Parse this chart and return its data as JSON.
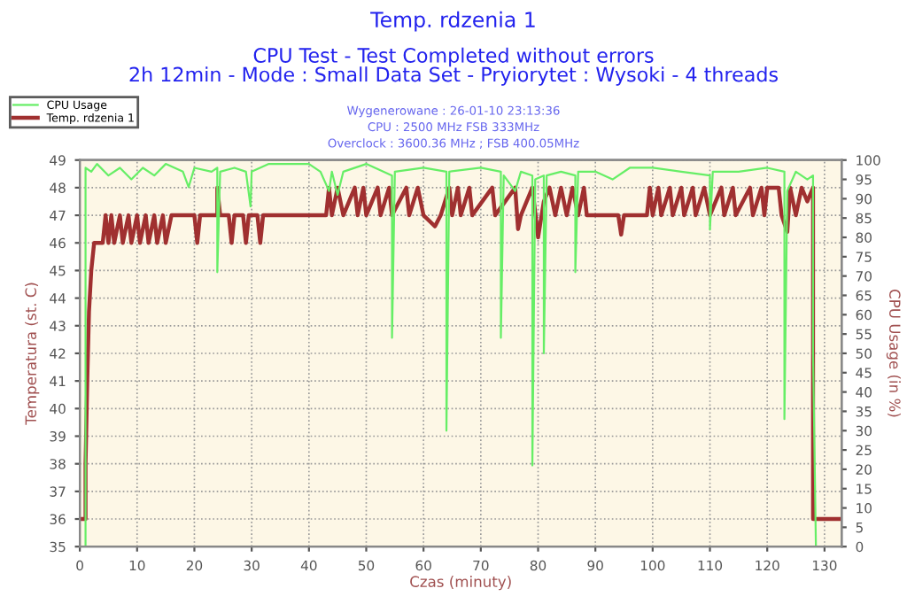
{
  "chart_data": {
    "type": "line",
    "title": "Temp. rdzenia 1",
    "subtitle": "CPU Test - Test Completed without errors\n2h 12min - Mode : Small Data Set - Pryiorytet : Wysoki - 4 threads",
    "annotations": [
      "Wygenerowane : 26-01-10 23:13:36",
      "CPU : 2500 MHz FSB 333MHz",
      "Overclock : 3600.36 MHz ; FSB 400.05MHz"
    ],
    "xlabel": "Czas (minuty)",
    "ylabel": "Temperatura (st. C)",
    "y2label": "CPU Usage (in %)",
    "xlim": [
      0,
      133
    ],
    "xticks": [
      0,
      10,
      20,
      30,
      40,
      50,
      60,
      70,
      80,
      90,
      100,
      110,
      120,
      130
    ],
    "ylim": [
      35,
      49
    ],
    "yticks": [
      35,
      36,
      37,
      38,
      39,
      40,
      41,
      42,
      43,
      44,
      45,
      46,
      47,
      48,
      49
    ],
    "y2lim": [
      0,
      100
    ],
    "y2ticks": [
      0,
      5,
      10,
      15,
      20,
      25,
      30,
      35,
      40,
      45,
      50,
      55,
      60,
      65,
      70,
      75,
      80,
      85,
      90,
      95,
      100
    ],
    "grid": true,
    "legend": "top left",
    "line_style": "solid",
    "marker": "none",
    "series": [
      {
        "name": "CPU Usage",
        "color": "#66ee66",
        "axis": "y2",
        "x": [
          0,
          1,
          1,
          2,
          3,
          5,
          7,
          9,
          11,
          13,
          15,
          18,
          19,
          20,
          23,
          24,
          24,
          24.5,
          27,
          29,
          29.8,
          30,
          33,
          37,
          40,
          42,
          43.5,
          44,
          45,
          46,
          50,
          54.5,
          54.5,
          55,
          60,
          64,
          64,
          64.5,
          70,
          73.5,
          73.5,
          74,
          76,
          77,
          79,
          79,
          79.5,
          81,
          81,
          81.5,
          84,
          86.5,
          86.5,
          87,
          90,
          93,
          96,
          100,
          105,
          110,
          110,
          110.5,
          115,
          120,
          123,
          123,
          123.5,
          125,
          127,
          128,
          128,
          128.5,
          133
        ],
        "values": [
          0,
          0,
          98,
          97,
          99,
          96,
          98,
          95,
          98,
          96,
          99,
          97,
          93,
          98,
          97,
          98,
          71,
          97,
          98,
          97,
          88,
          97,
          99,
          99,
          99,
          97,
          92,
          97,
          91,
          97,
          99,
          96,
          54,
          97,
          98,
          97,
          30,
          97,
          98,
          97,
          54,
          96,
          92,
          97,
          96,
          21,
          95,
          96,
          50,
          96,
          97,
          96,
          71,
          97,
          97,
          95,
          98,
          98,
          97,
          96,
          82,
          97,
          97,
          98,
          97,
          33,
          92,
          97,
          95,
          96,
          50,
          0,
          0
        ]
      },
      {
        "name": "Temp. rdzenia 1",
        "color": "#a03030",
        "x": [
          0,
          1,
          1,
          1.3,
          1.6,
          2,
          2.5,
          4,
          4.5,
          5,
          5.5,
          6,
          7,
          7.5,
          8.5,
          9,
          10,
          10.5,
          11.5,
          12,
          13,
          13.5,
          14.5,
          15,
          16,
          20,
          20.5,
          21,
          24,
          24,
          24.5,
          26,
          26.5,
          27,
          28.5,
          29,
          29.5,
          31,
          31.5,
          32,
          43,
          43.5,
          44,
          45,
          46,
          48,
          48.5,
          49.5,
          50,
          52,
          52.5,
          54,
          54.5,
          57,
          57.5,
          59,
          60,
          62,
          63,
          64.5,
          65,
          66,
          66.5,
          68,
          68.5,
          72,
          72.5,
          76,
          76.5,
          77,
          79,
          80,
          81,
          82,
          83,
          84,
          85,
          86,
          87,
          88,
          88.5,
          94,
          94.5,
          95,
          99,
          99.5,
          100,
          101,
          101.5,
          103,
          103.5,
          105,
          105.5,
          107,
          107.5,
          109,
          110,
          112,
          112.5,
          114,
          114.5,
          117,
          117.5,
          119,
          119.5,
          120,
          122,
          122.5,
          123.5,
          124,
          125,
          126,
          127,
          128,
          128,
          133
        ],
        "values": [
          36,
          36,
          38,
          41,
          43.5,
          45,
          46,
          46,
          47,
          46,
          47,
          46,
          47,
          46,
          47,
          46,
          47,
          46,
          47,
          46,
          47,
          46,
          47,
          46,
          47,
          47,
          46,
          47,
          47,
          48,
          47,
          47,
          46,
          47,
          47,
          46,
          47,
          47,
          46,
          47,
          47,
          48,
          47,
          48,
          47,
          48,
          47,
          48,
          47,
          48,
          47,
          48,
          47,
          48,
          47,
          48,
          47,
          46.6,
          47,
          48,
          47,
          48,
          47,
          48,
          47,
          48,
          47,
          48,
          46.5,
          47,
          48,
          46.2,
          47.5,
          48,
          47,
          48,
          47,
          48,
          47,
          48,
          47,
          47,
          46.3,
          47,
          47,
          48,
          47,
          48,
          47,
          48,
          47,
          48,
          47,
          48,
          47,
          48,
          47,
          48,
          47,
          48,
          47,
          48,
          47,
          48,
          47,
          48,
          48,
          47,
          46.4,
          48,
          47,
          48,
          47.5,
          48,
          36,
          36
        ]
      }
    ]
  }
}
